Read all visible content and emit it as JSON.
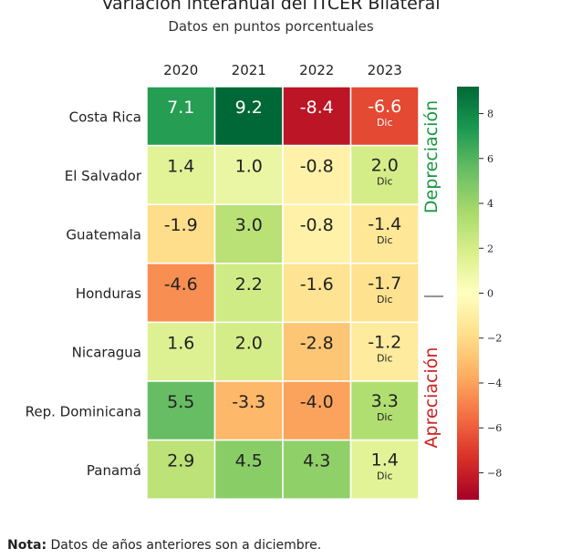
{
  "chart_data": {
    "type": "heatmap",
    "title": "Variación interanual del ITCER Bilateral",
    "subtitle": "Datos en puntos porcentuales",
    "columns": [
      "2020",
      "2021",
      "2022",
      "2023"
    ],
    "rows": [
      "Costa Rica",
      "El Salvador",
      "Guatemala",
      "Honduras",
      "Nicaragua",
      "Rep. Dominicana",
      "Panamá"
    ],
    "values": [
      [
        7.1,
        9.2,
        -8.4,
        -6.6
      ],
      [
        1.4,
        1.0,
        -0.8,
        2.0
      ],
      [
        -1.9,
        3.0,
        -0.8,
        -1.4
      ],
      [
        -4.6,
        2.2,
        -1.6,
        -1.7
      ],
      [
        1.6,
        2.0,
        -2.8,
        -1.2
      ],
      [
        5.5,
        -3.3,
        -4.0,
        3.3
      ],
      [
        2.9,
        4.5,
        4.3,
        1.4
      ]
    ],
    "labels": [
      [
        "7.1",
        "9.2",
        "-8.4",
        "-6.6"
      ],
      [
        "1.4",
        "1.0",
        "-0.8",
        "2.0"
      ],
      [
        "-1.9",
        "3.0",
        "-0.8",
        "-1.4"
      ],
      [
        "-4.6",
        "2.2",
        "-1.6",
        "-1.7"
      ],
      [
        "1.6",
        "2.0",
        "-2.8",
        "-1.2"
      ],
      [
        "5.5",
        "-3.3",
        "-4.0",
        "3.3"
      ],
      [
        "2.9",
        "4.5",
        "4.3",
        "1.4"
      ]
    ],
    "cell_note": "Dic",
    "cell_note_column": "2023",
    "colorbar": {
      "range": [
        -9.2,
        9.2
      ],
      "ticks": [
        8,
        6,
        4,
        2,
        0,
        -2,
        -4,
        -6,
        -8
      ],
      "tick_labels": [
        "8",
        "6",
        "4",
        "2",
        "0",
        "−2",
        "−4",
        "−6",
        "−8"
      ],
      "colormap": "RdYlGn"
    },
    "side_labels": {
      "upper": "Depreciación",
      "upper_color": "#1a9641",
      "lower": "Apreciación",
      "lower_color": "#cc2222"
    }
  },
  "note": {
    "label": "Nota:",
    "text": "Datos de años anteriores son a diciembre."
  }
}
